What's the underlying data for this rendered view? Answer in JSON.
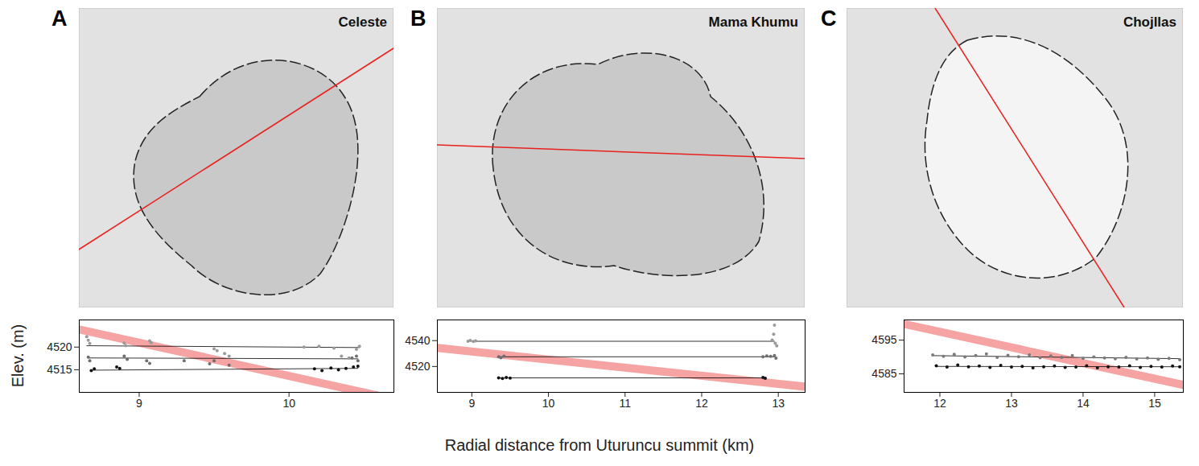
{
  "x_label": "Radial distance from Uturuncu summit (km)",
  "y_label": "Elev. (m)",
  "chart_data": [
    {
      "type": "scatter",
      "panel": "A",
      "title": "Celeste",
      "xlim": [
        8.6,
        10.7
      ],
      "ylim": [
        4510,
        4526
      ],
      "xticks": [
        9,
        10
      ],
      "yticks": [
        4515,
        4520
      ],
      "trend": {
        "color": "#f6a3a3",
        "x": [
          8.6,
          10.7
        ],
        "y": [
          4523.9,
          4508.5
        ]
      },
      "series": [
        {
          "color": "#9a9a9a",
          "x": [
            8.65,
            8.66,
            8.67,
            8.9,
            8.91,
            9.07,
            9.08,
            9.5,
            9.52,
            9.57,
            9.6,
            10.1,
            10.2,
            10.3,
            10.35,
            10.4,
            10.45,
            10.47
          ],
          "y": [
            4522.3,
            4521.5,
            4520.8,
            4520.9,
            4520.3,
            4521.4,
            4521.0,
            4519.6,
            4519.2,
            4518.6,
            4518.0,
            4520.0,
            4520.2,
            4519.8,
            4518.0,
            4517.6,
            4519.5,
            4520.2
          ],
          "fit": {
            "x": [
              8.65,
              10.47
            ],
            "y": [
              4520.3,
              4519.9
            ]
          }
        },
        {
          "color": "#6e6e6e",
          "x": [
            8.66,
            8.67,
            8.9,
            8.92,
            9.05,
            9.07,
            9.3,
            9.47,
            9.5,
            9.6,
            10.42,
            10.45,
            10.46
          ],
          "y": [
            4517.8,
            4517.0,
            4518.0,
            4517.3,
            4517.0,
            4516.4,
            4517.0,
            4516.3,
            4517.0,
            4516.0,
            4517.6,
            4518.0,
            4517.0
          ],
          "fit": {
            "x": [
              8.66,
              10.46
            ],
            "y": [
              4517.6,
              4517.4
            ]
          }
        },
        {
          "color": "#111111",
          "x": [
            8.68,
            8.7,
            8.85,
            8.87,
            10.17,
            10.22,
            10.28,
            10.33,
            10.38,
            10.43,
            10.46
          ],
          "y": [
            4514.8,
            4515.2,
            4515.6,
            4515.3,
            4515.2,
            4514.8,
            4515.4,
            4515.0,
            4515.3,
            4515.6,
            4515.8
          ],
          "fit": {
            "x": [
              8.68,
              10.46
            ],
            "y": [
              4514.9,
              4515.3
            ]
          }
        }
      ]
    },
    {
      "type": "scatter",
      "panel": "B",
      "title": "Mama Khumu",
      "xlim": [
        8.55,
        13.35
      ],
      "ylim": [
        4500,
        4556
      ],
      "xticks": [
        9,
        10,
        11,
        12,
        13
      ],
      "yticks": [
        4520,
        4540
      ],
      "trend": {
        "color": "#f6a3a3",
        "x": [
          8.55,
          13.35
        ],
        "y": [
          4534.4,
          4504.4
        ]
      },
      "series": [
        {
          "color": "#9a9a9a",
          "x": [
            8.95,
            8.98,
            9.02,
            9.05,
            12.92,
            12.94,
            12.95,
            12.96,
            12.98
          ],
          "y": [
            4539.5,
            4540.2,
            4539.3,
            4539.8,
            4540.5,
            4545,
            4552,
            4538,
            4536
          ],
          "fit": {
            "x": [
              9.0,
              12.95
            ],
            "y": [
              4539.5,
              4539.5
            ]
          }
        },
        {
          "color": "#6e6e6e",
          "x": [
            9.35,
            9.38,
            9.42,
            12.8,
            12.85,
            12.9,
            12.95,
            12.97
          ],
          "y": [
            4527.5,
            4526.8,
            4528.0,
            4527.5,
            4528.2,
            4527.8,
            4528.5,
            4526.5
          ],
          "fit": {
            "x": [
              9.35,
              12.95
            ],
            "y": [
              4527.5,
              4527.5
            ]
          }
        },
        {
          "color": "#111111",
          "x": [
            9.35,
            9.4,
            9.45,
            9.5,
            12.8,
            12.83
          ],
          "y": [
            4511.2,
            4510.8,
            4511.5,
            4511.0,
            4511.5,
            4510.9
          ],
          "fit": {
            "x": [
              9.35,
              12.83
            ],
            "y": [
              4511.2,
              4511.2
            ]
          }
        }
      ]
    },
    {
      "type": "scatter",
      "panel": "C",
      "title": "Chojllas",
      "xlim": [
        11.5,
        15.4
      ],
      "ylim": [
        4579.5,
        4601
      ],
      "xticks": [
        12,
        13,
        14,
        15
      ],
      "yticks": [
        4585,
        4595
      ],
      "trend": {
        "color": "#f6a3a3",
        "x": [
          11.5,
          15.4
        ],
        "y": [
          4599.8,
          4581.7
        ]
      },
      "series": [
        {
          "color": "#7a7a7a",
          "x": [
            11.9,
            12.05,
            12.2,
            12.35,
            12.5,
            12.65,
            12.8,
            12.95,
            13.1,
            13.25,
            13.4,
            13.55,
            13.7,
            13.85,
            14.0,
            14.15,
            14.3,
            14.45,
            14.6,
            14.75,
            14.9,
            15.05,
            15.2,
            15.35
          ],
          "y": [
            4590.6,
            4590.2,
            4590.8,
            4590.0,
            4590.4,
            4590.9,
            4589.9,
            4590.5,
            4590.1,
            4590.6,
            4589.8,
            4590.3,
            4589.9,
            4590.4,
            4589.6,
            4590.0,
            4589.7,
            4589.5,
            4589.9,
            4589.4,
            4589.7,
            4589.3,
            4589.6,
            4589.2
          ],
          "fit": {
            "x": [
              11.9,
              15.35
            ],
            "y": [
              4590.4,
              4589.5
            ]
          }
        },
        {
          "color": "#111111",
          "x": [
            11.95,
            12.1,
            12.25,
            12.4,
            12.55,
            12.7,
            12.85,
            13.0,
            13.15,
            13.3,
            13.45,
            13.6,
            13.75,
            13.9,
            14.05,
            14.2,
            14.35,
            14.5,
            14.65,
            14.8,
            14.95,
            15.1,
            15.25,
            15.35
          ],
          "y": [
            4587.4,
            4587.0,
            4587.6,
            4587.1,
            4587.3,
            4586.9,
            4587.5,
            4587.0,
            4587.2,
            4586.8,
            4587.1,
            4587.3,
            4586.9,
            4587.0,
            4587.4,
            4586.8,
            4587.1,
            4587.0,
            4587.4,
            4586.9,
            4587.2,
            4587.0,
            4587.3,
            4587.1
          ],
          "fit": {
            "x": [
              11.95,
              15.35
            ],
            "y": [
              4587.2,
              4587.1
            ]
          }
        }
      ]
    }
  ]
}
